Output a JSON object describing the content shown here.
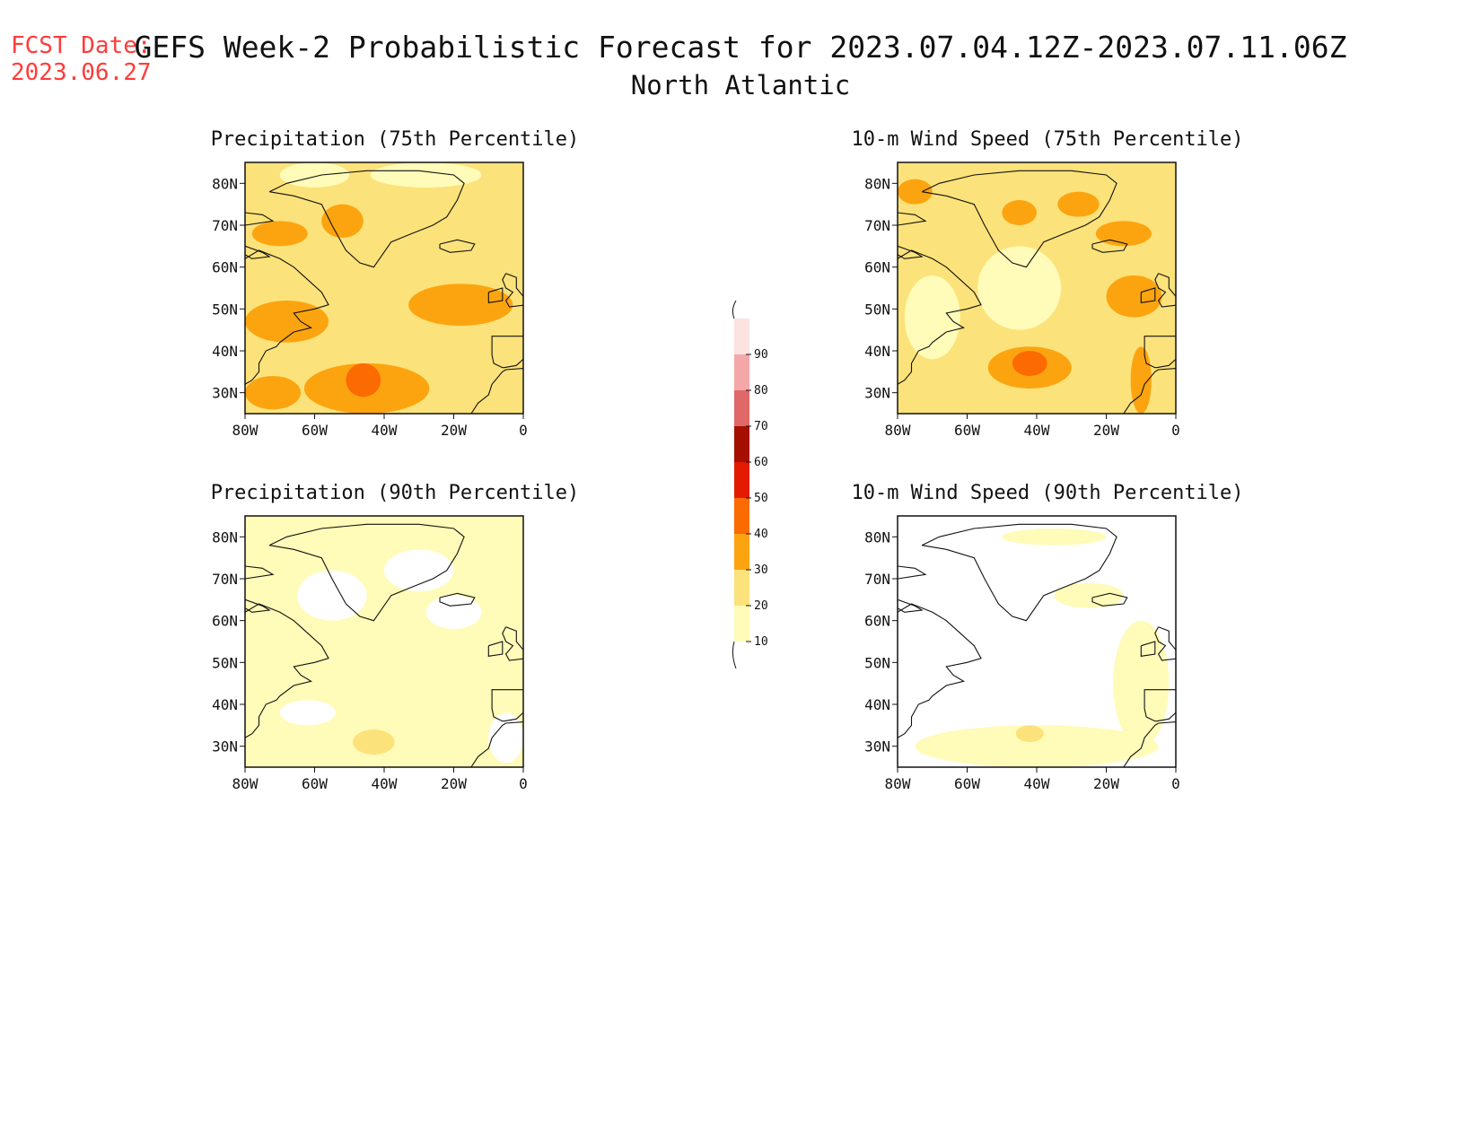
{
  "header": {
    "fcst_label": "FCST Date:",
    "fcst_date": "2023.06.27",
    "title": "GEFS Week-2 Probabilistic Forecast for 2023.07.04.12Z-2023.07.11.06Z",
    "subtitle": "North Atlantic"
  },
  "axes": {
    "lat_ticks": [
      "80N",
      "70N",
      "60N",
      "50N",
      "40N",
      "30N"
    ],
    "lon_ticks": [
      "80W",
      "60W",
      "40W",
      "20W",
      "0"
    ]
  },
  "panels": [
    {
      "title": "Precipitation (75th Percentile)",
      "base_level": 20,
      "blobs": [
        {
          "lon": -68,
          "lat": 47,
          "rx": 12,
          "ry": 5,
          "level": 30
        },
        {
          "lon": -45,
          "lat": 31,
          "rx": 18,
          "ry": 6,
          "level": 30
        },
        {
          "lon": -46,
          "lat": 33,
          "rx": 5,
          "ry": 4,
          "level": 40
        },
        {
          "lon": -18,
          "lat": 51,
          "rx": 15,
          "ry": 5,
          "level": 30
        },
        {
          "lon": -52,
          "lat": 71,
          "rx": 6,
          "ry": 4,
          "level": 30
        },
        {
          "lon": -70,
          "lat": 68,
          "rx": 8,
          "ry": 3,
          "level": 30
        },
        {
          "lon": -72,
          "lat": 30,
          "rx": 8,
          "ry": 4,
          "level": 30
        },
        {
          "lon": -28,
          "lat": 82,
          "rx": 16,
          "ry": 3,
          "level": 10
        },
        {
          "lon": -60,
          "lat": 82,
          "rx": 10,
          "ry": 3,
          "level": 10
        }
      ]
    },
    {
      "title": "10-m Wind Speed (75th Percentile)",
      "base_level": 20,
      "blobs": [
        {
          "lon": -42,
          "lat": 36,
          "rx": 12,
          "ry": 5,
          "level": 30
        },
        {
          "lon": -42,
          "lat": 37,
          "rx": 5,
          "ry": 3,
          "level": 40
        },
        {
          "lon": -12,
          "lat": 53,
          "rx": 8,
          "ry": 5,
          "level": 30
        },
        {
          "lon": -10,
          "lat": 33,
          "rx": 3,
          "ry": 8,
          "level": 30
        },
        {
          "lon": -75,
          "lat": 78,
          "rx": 5,
          "ry": 3,
          "level": 30
        },
        {
          "lon": -45,
          "lat": 73,
          "rx": 5,
          "ry": 3,
          "level": 30
        },
        {
          "lon": -28,
          "lat": 75,
          "rx": 6,
          "ry": 3,
          "level": 30
        },
        {
          "lon": -15,
          "lat": 68,
          "rx": 8,
          "ry": 3,
          "level": 30
        },
        {
          "lon": -70,
          "lat": 48,
          "rx": 8,
          "ry": 10,
          "level": 10
        },
        {
          "lon": -45,
          "lat": 55,
          "rx": 12,
          "ry": 10,
          "level": 10
        }
      ]
    },
    {
      "title": "Precipitation (90th Percentile)",
      "base_level": 10,
      "blobs": [
        {
          "lon": -55,
          "lat": 66,
          "rx": 10,
          "ry": 6,
          "level": 0
        },
        {
          "lon": -30,
          "lat": 72,
          "rx": 10,
          "ry": 5,
          "level": 0
        },
        {
          "lon": -20,
          "lat": 62,
          "rx": 8,
          "ry": 4,
          "level": 0
        },
        {
          "lon": -62,
          "lat": 38,
          "rx": 8,
          "ry": 3,
          "level": 0
        },
        {
          "lon": -43,
          "lat": 31,
          "rx": 6,
          "ry": 3,
          "level": 20
        },
        {
          "lon": -5,
          "lat": 32,
          "rx": 5,
          "ry": 6,
          "level": 0
        }
      ]
    },
    {
      "title": "10-m Wind Speed (90th Percentile)",
      "base_level": 0,
      "blobs": [
        {
          "lon": -40,
          "lat": 30,
          "rx": 35,
          "ry": 5,
          "level": 10
        },
        {
          "lon": -10,
          "lat": 45,
          "rx": 8,
          "ry": 15,
          "level": 10
        },
        {
          "lon": -25,
          "lat": 66,
          "rx": 10,
          "ry": 3,
          "level": 10
        },
        {
          "lon": -35,
          "lat": 80,
          "rx": 15,
          "ry": 2,
          "level": 10
        },
        {
          "lon": -42,
          "lat": 33,
          "rx": 4,
          "ry": 2,
          "level": 20
        }
      ]
    }
  ],
  "colorbar": {
    "levels": [
      10,
      20,
      30,
      40,
      50,
      60,
      70,
      80,
      90
    ],
    "labels": [
      "10",
      "20",
      "30",
      "40",
      "50",
      "60",
      "70",
      "80",
      "90"
    ],
    "colors": [
      "#fffbb8",
      "#fce27a",
      "#fca40f",
      "#fc6a02",
      "#e31b00",
      "#a50f00",
      "#e06868",
      "#f4a7a7",
      "#fde2e2"
    ]
  }
}
